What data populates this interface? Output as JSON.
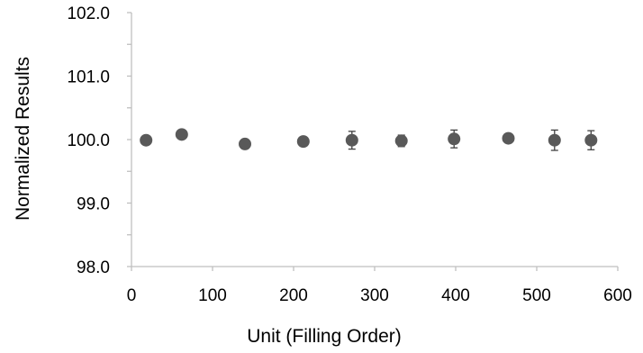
{
  "chart_data": {
    "type": "scatter",
    "title": "",
    "xlabel": "Unit (Filling Order)",
    "ylabel": "Normalized Results",
    "xlim": [
      0,
      600
    ],
    "ylim": [
      98.0,
      102.0
    ],
    "x_ticks": [
      0,
      100,
      200,
      300,
      400,
      500,
      600
    ],
    "x_tick_labels": [
      "0",
      "100",
      "200",
      "300",
      "400",
      "500",
      "600"
    ],
    "y_ticks": [
      98.0,
      99.0,
      100.0,
      101.0,
      102.0
    ],
    "y_tick_labels": [
      "98.0",
      "99.0",
      "100.0",
      "101.0",
      "102.0"
    ],
    "y_minor_ticks": [
      98.5,
      99.5,
      100.5,
      101.5
    ],
    "grid": false,
    "legend": "none",
    "marker_color": "#595959",
    "series": [
      {
        "x": [
          18,
          62,
          140,
          212,
          272,
          333,
          398,
          465,
          522,
          567
        ],
        "y": [
          99.99,
          100.08,
          99.93,
          99.97,
          99.99,
          99.98,
          100.01,
          100.02,
          99.99,
          99.99
        ],
        "error": [
          0.02,
          0.03,
          0.03,
          0.06,
          0.14,
          0.09,
          0.14,
          0.07,
          0.16,
          0.15
        ]
      }
    ]
  }
}
